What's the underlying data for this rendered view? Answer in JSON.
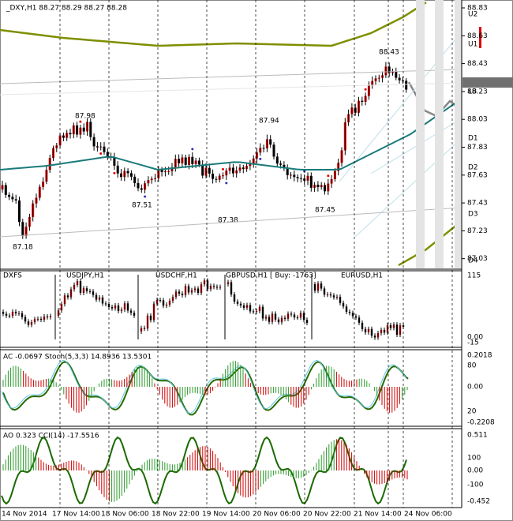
{
  "main": {
    "header": "_DXY,H1  88.27 88.29 88.27 88.28",
    "price_box": "88.28",
    "axis": [
      "88.83",
      "88.63",
      "88.43",
      "88.23",
      "88.03",
      "87.83",
      "87.63",
      "87.43",
      "87.23",
      "87.03"
    ],
    "levels": [
      "U2",
      "U1",
      "LB",
      "D1",
      "D2",
      "D3",
      "D4"
    ],
    "annotations": [
      "87.98",
      "87.51",
      "87.38",
      "87.18",
      "87.94",
      "87.45",
      "88.43"
    ]
  },
  "symbols": {
    "title": "DXFS",
    "labels": [
      "USDJPY,H1",
      "USDCHF,H1",
      "GBPUSD,H1 [ Buy: -1763]",
      "EURUSD,H1"
    ],
    "axis": [
      "115",
      "0.00",
      "-15"
    ]
  },
  "ac": {
    "title": "AC -0.0697  Stoch(5,3,3) 14.8936 13.5301",
    "axis": [
      "0.2018",
      "80",
      "0.00",
      "20",
      "-0.2208"
    ]
  },
  "ao": {
    "title": "AO 0.323  CCI(14) -17.5516",
    "axis": [
      "0.511",
      "100",
      "0.00",
      "-100",
      "-0.452"
    ]
  },
  "time_axis": [
    "14 Nov 2014",
    "17 Nov 14:00",
    "18 Nov 06:00",
    "18 Nov 22:00",
    "19 Nov 14:00",
    "20 Nov 06:00",
    "20 Nov 22:00",
    "21 Nov 14:00",
    "24 Nov 06:00"
  ]
}
